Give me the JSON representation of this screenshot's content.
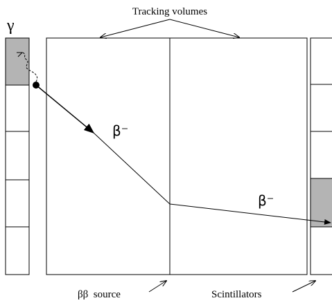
{
  "labels": {
    "tracking_volumes": "Tracking volumes",
    "gamma": "γ",
    "beta_track_1": "β⁻",
    "beta_track_2": "β⁻",
    "source": "ββ  source",
    "scintillators": "Scintillators"
  }
}
